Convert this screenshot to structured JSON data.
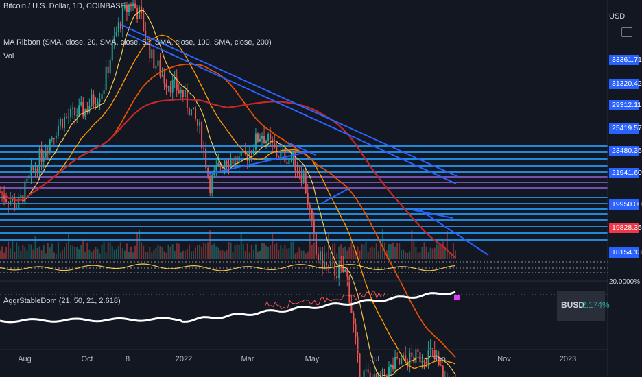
{
  "title": "Bitcoin / U.S. Dollar, 1D, COINBASE",
  "indicators": {
    "ribbon": "MA Ribbon (SMA, close, 20, SMA, close, 50, SMA, close, 100, SMA, close, 200)",
    "vol": "Vol",
    "aggr": "AggrStableDom (21, 50, 21, 2.618)"
  },
  "currency": "USD",
  "colors": {
    "background": "#131722",
    "up": "#26a69a",
    "down": "#ef5350",
    "ma20": "#f7c949",
    "ma50": "#ff9800",
    "ma100": "#e65100",
    "ma200": "#c62828",
    "trend": "#2962ff",
    "hline": "#2196f3",
    "purple": "#7e57c2"
  },
  "price_axis": {
    "labels": [
      "33361.71",
      "31320.42",
      "29312.11",
      "25419.57",
      "23480.35",
      "21941.60",
      "19950.00",
      "19828.35",
      "18154.13"
    ],
    "current": "19828.35"
  },
  "x_axis": {
    "labels": [
      "Aug",
      "Oct",
      "8",
      "2022",
      "Mar",
      "May",
      "Jul",
      "Sep",
      "Nov",
      "2023"
    ]
  },
  "oscillator": {
    "pct_label": "20.0000%",
    "busd_label": "BUSD",
    "busd_value": "2.174%"
  },
  "chart_data": {
    "type": "candlestick",
    "price_levels": [
      33361.71,
      31320.42,
      29312.11,
      25419.57,
      23480.35,
      21941.6,
      19950.0,
      19828.35,
      18154.13
    ],
    "last_price": 19828.35,
    "date_ticks": [
      "Aug",
      "Oct",
      "8",
      "2022",
      "Mar",
      "May",
      "Jul",
      "Sep",
      "Nov",
      "2023"
    ],
    "series": [
      {
        "name": "SMA 20"
      },
      {
        "name": "SMA 50"
      },
      {
        "name": "SMA 100"
      },
      {
        "name": "SMA 200"
      }
    ],
    "close_path": [
      [
        0,
        22000
      ],
      [
        0.03,
        21000
      ],
      [
        0.06,
        24000
      ],
      [
        0.1,
        27500
      ],
      [
        0.14,
        28500
      ],
      [
        0.17,
        30500
      ],
      [
        0.19,
        36000
      ],
      [
        0.2,
        38000
      ],
      [
        0.215,
        40000
      ],
      [
        0.23,
        38500
      ],
      [
        0.25,
        33500
      ],
      [
        0.27,
        31500
      ],
      [
        0.3,
        30000
      ],
      [
        0.33,
        26500
      ],
      [
        0.345,
        22500
      ],
      [
        0.37,
        24500
      ],
      [
        0.4,
        24200
      ],
      [
        0.43,
        26500
      ],
      [
        0.455,
        24800
      ],
      [
        0.48,
        24500
      ],
      [
        0.5,
        23000
      ],
      [
        0.52,
        18000
      ],
      [
        0.54,
        17200
      ],
      [
        0.57,
        17000
      ],
      [
        0.59,
        12500
      ],
      [
        0.62,
        12000
      ],
      [
        0.65,
        12700
      ],
      [
        0.68,
        13000
      ],
      [
        0.71,
        13200
      ],
      [
        0.735,
        12000
      ],
      [
        0.75,
        11800
      ]
    ]
  }
}
